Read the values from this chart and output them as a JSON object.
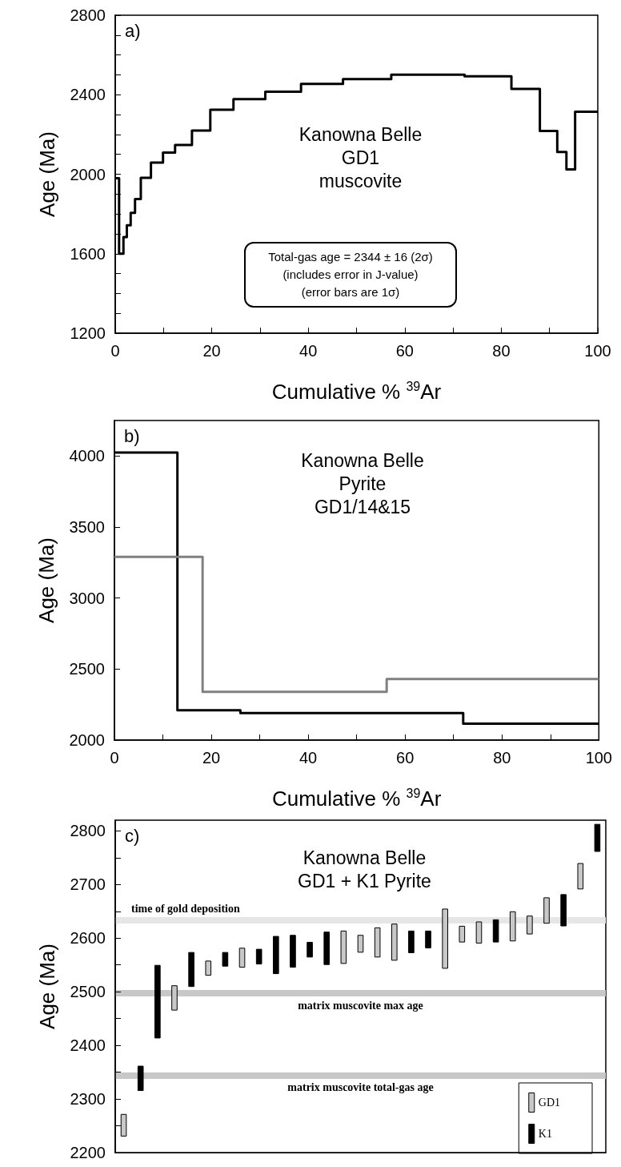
{
  "chart_data": [
    {
      "type": "step",
      "title": "Kanowna Belle\nGD1\nmuscovite",
      "xlabel": "Cumulative % $^{39}$Ar",
      "ylabel": "Age (Ma)",
      "annotations": [
        "a)",
        "Total-gas age = 2344 ± 16  (2σ)\n(includes error in J-value)\n(error bars are 1σ)"
      ],
      "marker": "none",
      "x": [
        0,
        0.8,
        1.7,
        2.4,
        3.2,
        4.1,
        5.3,
        7.4,
        9.9,
        12.4,
        15.9,
        19.7,
        24.5,
        31.1,
        38.5,
        47.2,
        57.2,
        72.4,
        82.1,
        88.0,
        91.6,
        93.5,
        95.3,
        100
      ],
      "series": [
        {
          "color": "#000000",
          "values": [
            1980,
            1600,
            1684,
            1743,
            1806,
            1875,
            1982,
            2058,
            2109,
            2147,
            2220,
            2324,
            2378,
            2415,
            2454,
            2479,
            2501,
            2493,
            2429,
            2218,
            2112,
            2024,
            2314,
            2314
          ]
        }
      ],
      "xlim": [
        0,
        100
      ],
      "xticks": [
        0,
        {
          "value": 10,
          "label": null
        },
        20,
        {
          "value": 30,
          "label": null
        },
        40,
        {
          "value": 50,
          "label": null
        },
        60,
        {
          "value": 70,
          "label": null
        },
        80,
        {
          "value": 90,
          "label": null
        },
        100
      ],
      "ylim": [
        1200,
        2800
      ],
      "yticks": [
        1200,
        {
          "value": 1300,
          "label": null
        },
        {
          "value": 1400,
          "label": null
        },
        {
          "value": 1500,
          "label": null
        },
        1600,
        {
          "value": 1700,
          "label": null
        },
        {
          "value": 1800,
          "label": null
        },
        {
          "value": 1900,
          "label": null
        },
        2000,
        {
          "value": 2100,
          "label": null
        },
        {
          "value": 2200,
          "label": null
        },
        {
          "value": 2300,
          "label": null
        },
        2400,
        {
          "value": 2500,
          "label": null
        },
        {
          "value": 2600,
          "label": null
        },
        {
          "value": 2700,
          "label": null
        },
        2800
      ]
    },
    {
      "type": "step",
      "title": "Kanowna Belle\nPyrite\nGD1/14&15",
      "xlabel": "Cumulative % $^{39}$Ar",
      "ylabel": "Age (Ma)",
      "annotations": [
        "b)"
      ],
      "marker": "none",
      "series": [
        {
          "color": "#000000",
          "x": [
            0,
            13,
            26,
            72,
            100
          ],
          "values": [
            4025,
            2210,
            2190,
            2115,
            2115
          ]
        },
        {
          "color": "#808080",
          "x": [
            0,
            18.2,
            56.2,
            100
          ],
          "values": [
            3290,
            2340,
            2430,
            2430
          ]
        }
      ],
      "xlim": [
        0,
        100
      ],
      "xticks": [
        0,
        {
          "value": 10,
          "label": null
        },
        20,
        {
          "value": 30,
          "label": null
        },
        40,
        {
          "value": 50,
          "label": null
        },
        60,
        {
          "value": 70,
          "label": null
        },
        80,
        {
          "value": 90,
          "label": null
        },
        100
      ],
      "ylim": [
        2000,
        4250
      ],
      "yticks": [
        2000,
        2500,
        3000,
        3500,
        4000
      ]
    },
    {
      "type": "bar",
      "title": "Kanowna Belle\nGD1 + K1 Pyrite",
      "ylabel": "Age (Ma)",
      "annotations": [
        "c)"
      ],
      "legend": "bottom right",
      "tick_labels": "y",
      "categories": [
        null,
        null,
        null,
        null,
        null,
        null,
        null,
        null,
        null,
        null,
        null,
        null,
        null,
        null,
        null,
        null,
        null,
        null,
        null,
        null,
        null,
        null,
        null,
        null,
        null,
        null,
        null,
        null,
        null
      ],
      "series": [
        {
          "name": "GD1",
          "color": "#c8c8c8",
          "base": [
            2230,
            null,
            null,
            2465,
            null,
            2530,
            null,
            2545,
            null,
            null,
            null,
            null,
            null,
            2552,
            2573,
            2564,
            2558,
            null,
            null,
            2543,
            2592,
            2590,
            null,
            2594,
            2607,
            2627,
            null,
            2691,
            null
          ],
          "values": [
            42,
            null,
            null,
            47,
            null,
            28,
            null,
            37,
            null,
            null,
            null,
            null,
            null,
            62,
            33,
            56,
            69,
            null,
            null,
            112,
            31,
            41,
            null,
            56,
            35,
            49,
            null,
            49,
            null
          ]
        },
        {
          "name": "K1",
          "color": "#000000",
          "base": [
            null,
            2315,
            2413,
            null,
            2509,
            null,
            2547,
            null,
            2551,
            2533,
            2545,
            2564,
            2550,
            null,
            null,
            null,
            null,
            2572,
            2581,
            null,
            null,
            null,
            2592,
            null,
            null,
            null,
            2622,
            null,
            2761
          ],
          "values": [
            null,
            47,
            137,
            null,
            65,
            null,
            27,
            null,
            29,
            71,
            61,
            29,
            62,
            null,
            null,
            null,
            null,
            42,
            33,
            null,
            null,
            null,
            43,
            null,
            null,
            null,
            60,
            null,
            52
          ]
        }
      ],
      "ref_lines": [
        {
          "axis": "y",
          "value": 2633,
          "label": "time of gold deposition",
          "color": "#e6e6e6"
        },
        {
          "axis": "y",
          "value": 2497,
          "label": "matrix muscovite max age",
          "color": "#c8c8c8"
        },
        {
          "axis": "y",
          "value": 2344,
          "label": "matrix muscovite total-gas age",
          "color": "#c8c8c8"
        }
      ],
      "ylim": [
        2200,
        2820
      ],
      "yticks": [
        2200,
        {
          "value": 2250,
          "label": null
        },
        2300,
        {
          "value": 2350,
          "label": null
        },
        2400,
        {
          "value": 2450,
          "label": null
        },
        2500,
        {
          "value": 2550,
          "label": null
        },
        2600,
        {
          "value": 2650,
          "label": null
        },
        2700,
        {
          "value": 2750,
          "label": null
        },
        2800
      ]
    }
  ]
}
